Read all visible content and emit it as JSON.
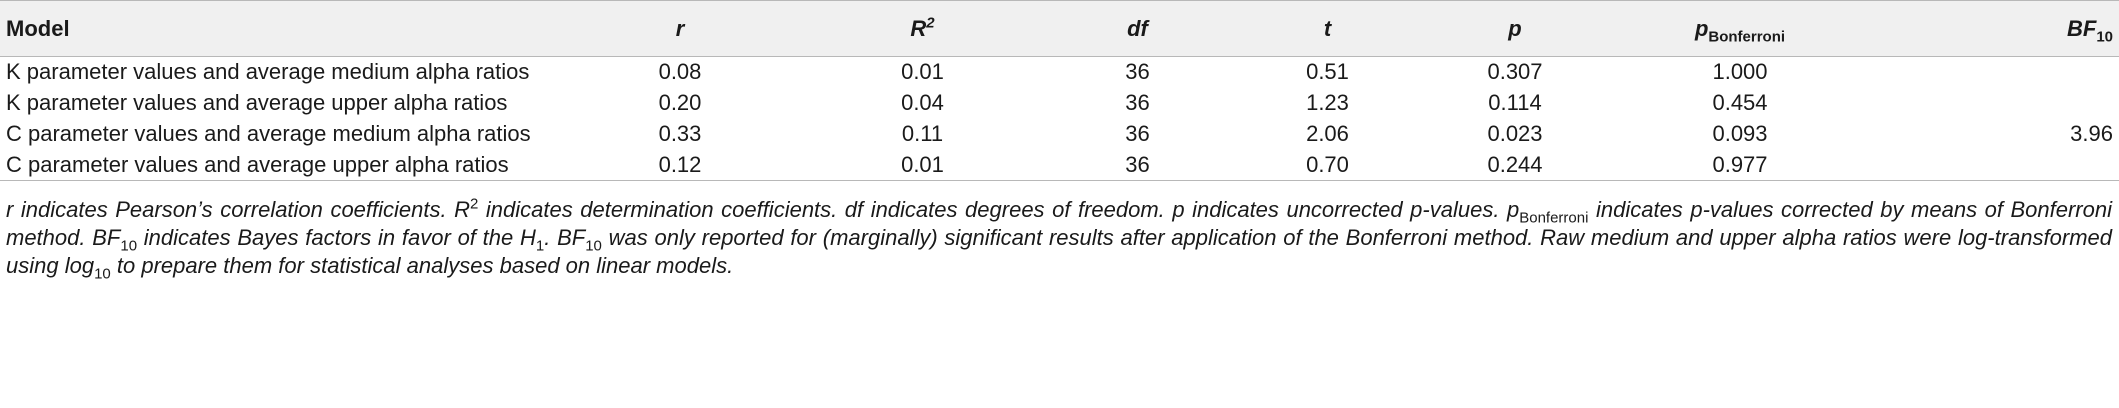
{
  "table": {
    "headers": {
      "model": "Model",
      "r": "r",
      "R2_base": "R",
      "R2_sup": "2",
      "df": "df",
      "t": "t",
      "p": "p",
      "pb_base": "p",
      "pb_sub": "Bonferroni",
      "bf_base": "BF",
      "bf_sub": "10"
    },
    "rows": [
      {
        "model": "K parameter values and average medium alpha ratios",
        "r": "0.08",
        "R2": "0.01",
        "df": "36",
        "t": "0.51",
        "p": "0.307",
        "pb": "1.000",
        "bf": ""
      },
      {
        "model": "K parameter values and average upper alpha ratios",
        "r": "0.20",
        "R2": "0.04",
        "df": "36",
        "t": "1.23",
        "p": "0.114",
        "pb": "0.454",
        "bf": ""
      },
      {
        "model": "C parameter values and average medium alpha ratios",
        "r": "0.33",
        "R2": "0.11",
        "df": "36",
        "t": "2.06",
        "p": "0.023",
        "pb": "0.093",
        "bf": "3.96"
      },
      {
        "model": "C parameter values and average upper alpha ratios",
        "r": "0.12",
        "R2": "0.01",
        "df": "36",
        "t": "0.70",
        "p": "0.244",
        "pb": "0.977",
        "bf": ""
      }
    ]
  },
  "footnote": {
    "p1": "r indicates Pearson’s correlation coefficients. R",
    "p1_sup": "2",
    "p2": " indicates determination coefficients. df indicates degrees of freedom. p indicates uncorrected p-values. p",
    "p2_sub": "Bonferroni",
    "p3": " indicates p-values corrected by means of Bonferroni method. BF",
    "p3_sub": "10",
    "p4": " indicates Bayes factors in favor of the H",
    "p4_sub": "1",
    "p5": ". BF",
    "p5_sub": "10",
    "p6": " was only reported for (marginally) significant results after application of the Bonferroni method. Raw medium and upper alpha ratios were log-transformed using log",
    "p6_sub": "10",
    "p7": " to prepare them for statistical analyses based on linear models."
  }
}
